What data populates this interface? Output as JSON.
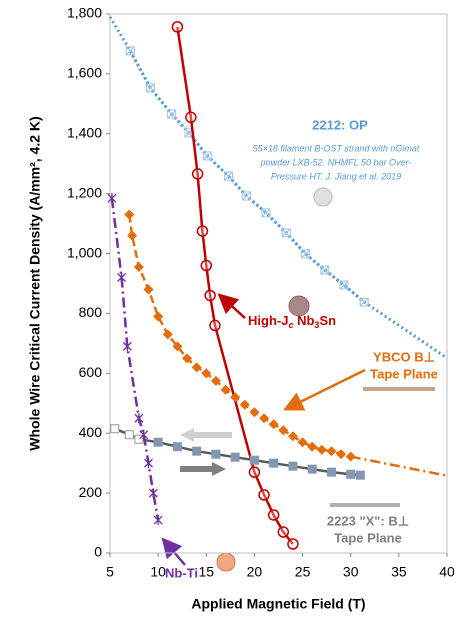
{
  "chart_data": {
    "type": "line",
    "y_label": "Whole Wire Critical Current Density (A/mm², 4.2 K)",
    "x_label": "Applied Magnetic Field (T)",
    "xlim": [
      5,
      40
    ],
    "xticks": [
      5,
      10,
      15,
      20,
      25,
      30,
      35,
      40
    ],
    "ylim": [
      0,
      1800
    ],
    "yticks": [
      0,
      200,
      400,
      600,
      800,
      {
        "value": 1000,
        "label": "1,000"
      },
      {
        "value": 1200,
        "label": "1,200"
      },
      {
        "value": 1400,
        "label": "1,400"
      },
      {
        "value": 1600,
        "label": "1,600"
      },
      {
        "value": 1800,
        "label": "1,800"
      }
    ],
    "note": [
      "55×18 filament B-OST strand with nGimat",
      "powder LXB-52. NHMFL 50 bar Over-",
      "Pressure HT. J. Jiang et al. 2019"
    ],
    "series": [
      {
        "name": [
          "2212: OP"
        ],
        "color": "#5b9bd5",
        "marker": "square-x",
        "dash": "dot",
        "x": [
          7.1,
          9.2,
          11.4,
          13.2,
          15.1,
          17.3,
          19.2,
          21.2,
          23.3,
          25.3,
          27.3,
          29.3,
          31.4
        ],
        "values": [
          1677,
          1553,
          1466,
          1403,
          1326,
          1259,
          1192,
          1136,
          1069,
          999,
          945,
          895,
          838
        ],
        "fit": {
          "x": [
            5,
            7.1,
            9.2,
            11.4,
            13.2,
            15.1,
            17.3,
            19.2,
            21.2,
            23.3,
            25.3,
            27.3,
            29.3,
            31.4,
            35,
            40
          ],
          "values": [
            1790,
            1677,
            1553,
            1466,
            1403,
            1326,
            1259,
            1192,
            1136,
            1069,
            999,
            945,
            895,
            838,
            760,
            651
          ]
        }
      },
      {
        "name": [
          "High-J",
          "c",
          " Nb",
          "3",
          "Sn"
        ],
        "subscripts": [
          1,
          3
        ],
        "color": "#c00000",
        "marker": "circle",
        "dash": "solid",
        "x": [
          12,
          13.4,
          14.1,
          14.6,
          15,
          15.4,
          15.9,
          20,
          21,
          22,
          23,
          24
        ],
        "values": [
          1757,
          1455,
          1266,
          1075,
          960,
          860,
          760,
          270,
          194,
          127,
          70,
          30
        ]
      },
      {
        "name": [
          "YBCO B⊥",
          "Tape Plane"
        ],
        "color": "#e46c0a",
        "marker": "diamond",
        "dash": "dash",
        "x": [
          7,
          7.3,
          8,
          9,
          10,
          11,
          12,
          13,
          14,
          15,
          16,
          17,
          18,
          19,
          20,
          21,
          22,
          23,
          24,
          25,
          26,
          27,
          28,
          29,
          30
        ],
        "values": [
          1130,
          1060,
          955,
          880,
          790,
          730,
          690,
          650,
          620,
          600,
          575,
          545,
          520,
          495,
          470,
          450,
          430,
          410,
          390,
          370,
          355,
          345,
          340,
          330,
          322
        ],
        "fit": {
          "x": [
            30,
            40
          ],
          "values": [
            322,
            258
          ]
        }
      },
      {
        "name": [
          "2223 \"X\": B⊥",
          "Tape Plane"
        ],
        "color": "#595959",
        "marker": "square",
        "dash": "solid",
        "x": [
          5.5,
          7,
          8,
          10,
          12,
          14,
          16,
          18,
          20,
          22,
          24,
          26,
          28,
          30,
          31
        ],
        "values": [
          415,
          395,
          380,
          370,
          355,
          340,
          330,
          320,
          310,
          300,
          290,
          280,
          270,
          263,
          260
        ]
      },
      {
        "name": [
          "Nb-Ti"
        ],
        "color": "#7030a0",
        "marker": "x",
        "dash": "dashdot",
        "x": [
          5.2,
          6.2,
          6.8,
          8,
          8.5,
          9,
          9.5,
          10
        ],
        "values": [
          1185,
          920,
          690,
          450,
          395,
          300,
          200,
          110
        ]
      }
    ]
  }
}
